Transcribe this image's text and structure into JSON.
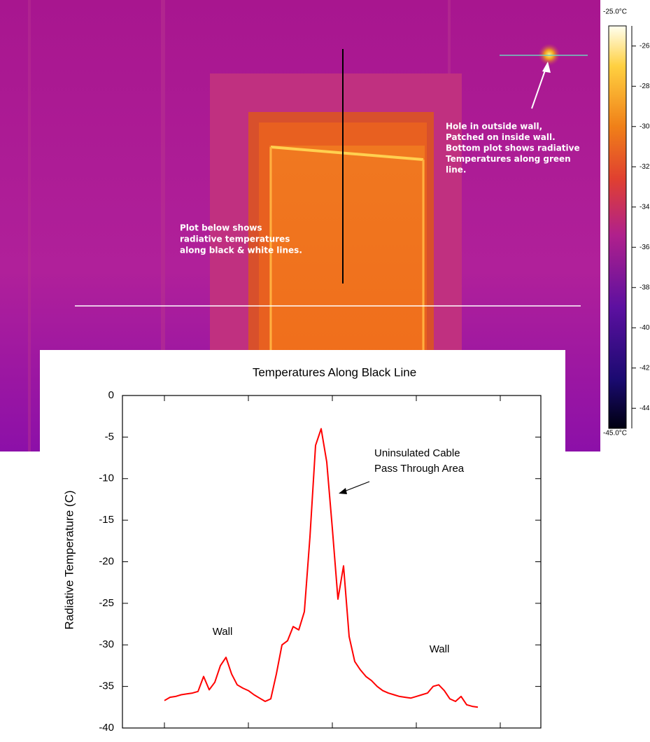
{
  "image": {
    "hole_note": [
      "Hole in outside wall,",
      "Patched on inside wall.",
      "Bottom plot shows radiative",
      "Temperatures along green",
      "line."
    ],
    "plot_note": [
      "Plot below shows",
      "radiative temperatures",
      "along black & white lines."
    ],
    "colorbar": {
      "lim": [
        -45,
        -25
      ],
      "ticks": [
        {
          "value": -25,
          "label": "-25.0°C"
        },
        -26,
        -28,
        -30,
        -32,
        -34,
        -36,
        -38,
        -40,
        -42,
        -44,
        {
          "value": -45,
          "label": "-45.0°C"
        }
      ]
    }
  },
  "chart_data": {
    "type": "line",
    "title": "Temperatures Along Black Line",
    "y_label": "Radiative Temperature (C)",
    "ylim": [
      -40,
      0
    ],
    "yticks": [
      0,
      -5,
      -10,
      -15,
      -20,
      -25,
      -30,
      -35,
      -40
    ],
    "series": [
      {
        "color": "#ff0000",
        "values": [
          -36.7,
          -36.3,
          -36.2,
          -36.0,
          -35.9,
          -35.8,
          -35.6,
          -33.8,
          -35.4,
          -34.5,
          -32.5,
          -31.5,
          -33.5,
          -34.8,
          -35.2,
          -35.5,
          -36.0,
          -36.4,
          -36.8,
          -36.5,
          -33.5,
          -30.0,
          -29.5,
          -27.8,
          -28.2,
          -26.0,
          -17.0,
          -6.0,
          -4.0,
          -8.0,
          -16.0,
          -24.5,
          -20.5,
          -29.0,
          -32.0,
          -33.0,
          -33.8,
          -34.3,
          -35.0,
          -35.5,
          -35.8,
          -36.0,
          -36.2,
          -36.3,
          -36.4,
          -36.2,
          -36.0,
          -35.8,
          -35.0,
          -34.8,
          -35.5,
          -36.5,
          -36.8,
          -36.2,
          -37.2,
          -37.4,
          -37.5
        ]
      }
    ],
    "annotations": [
      {
        "lines": [
          "Uninsulated Cable",
          "Pass Through Area"
        ]
      },
      {
        "lines": [
          "Wall"
        ]
      },
      {
        "lines": [
          "Wall"
        ]
      }
    ]
  }
}
